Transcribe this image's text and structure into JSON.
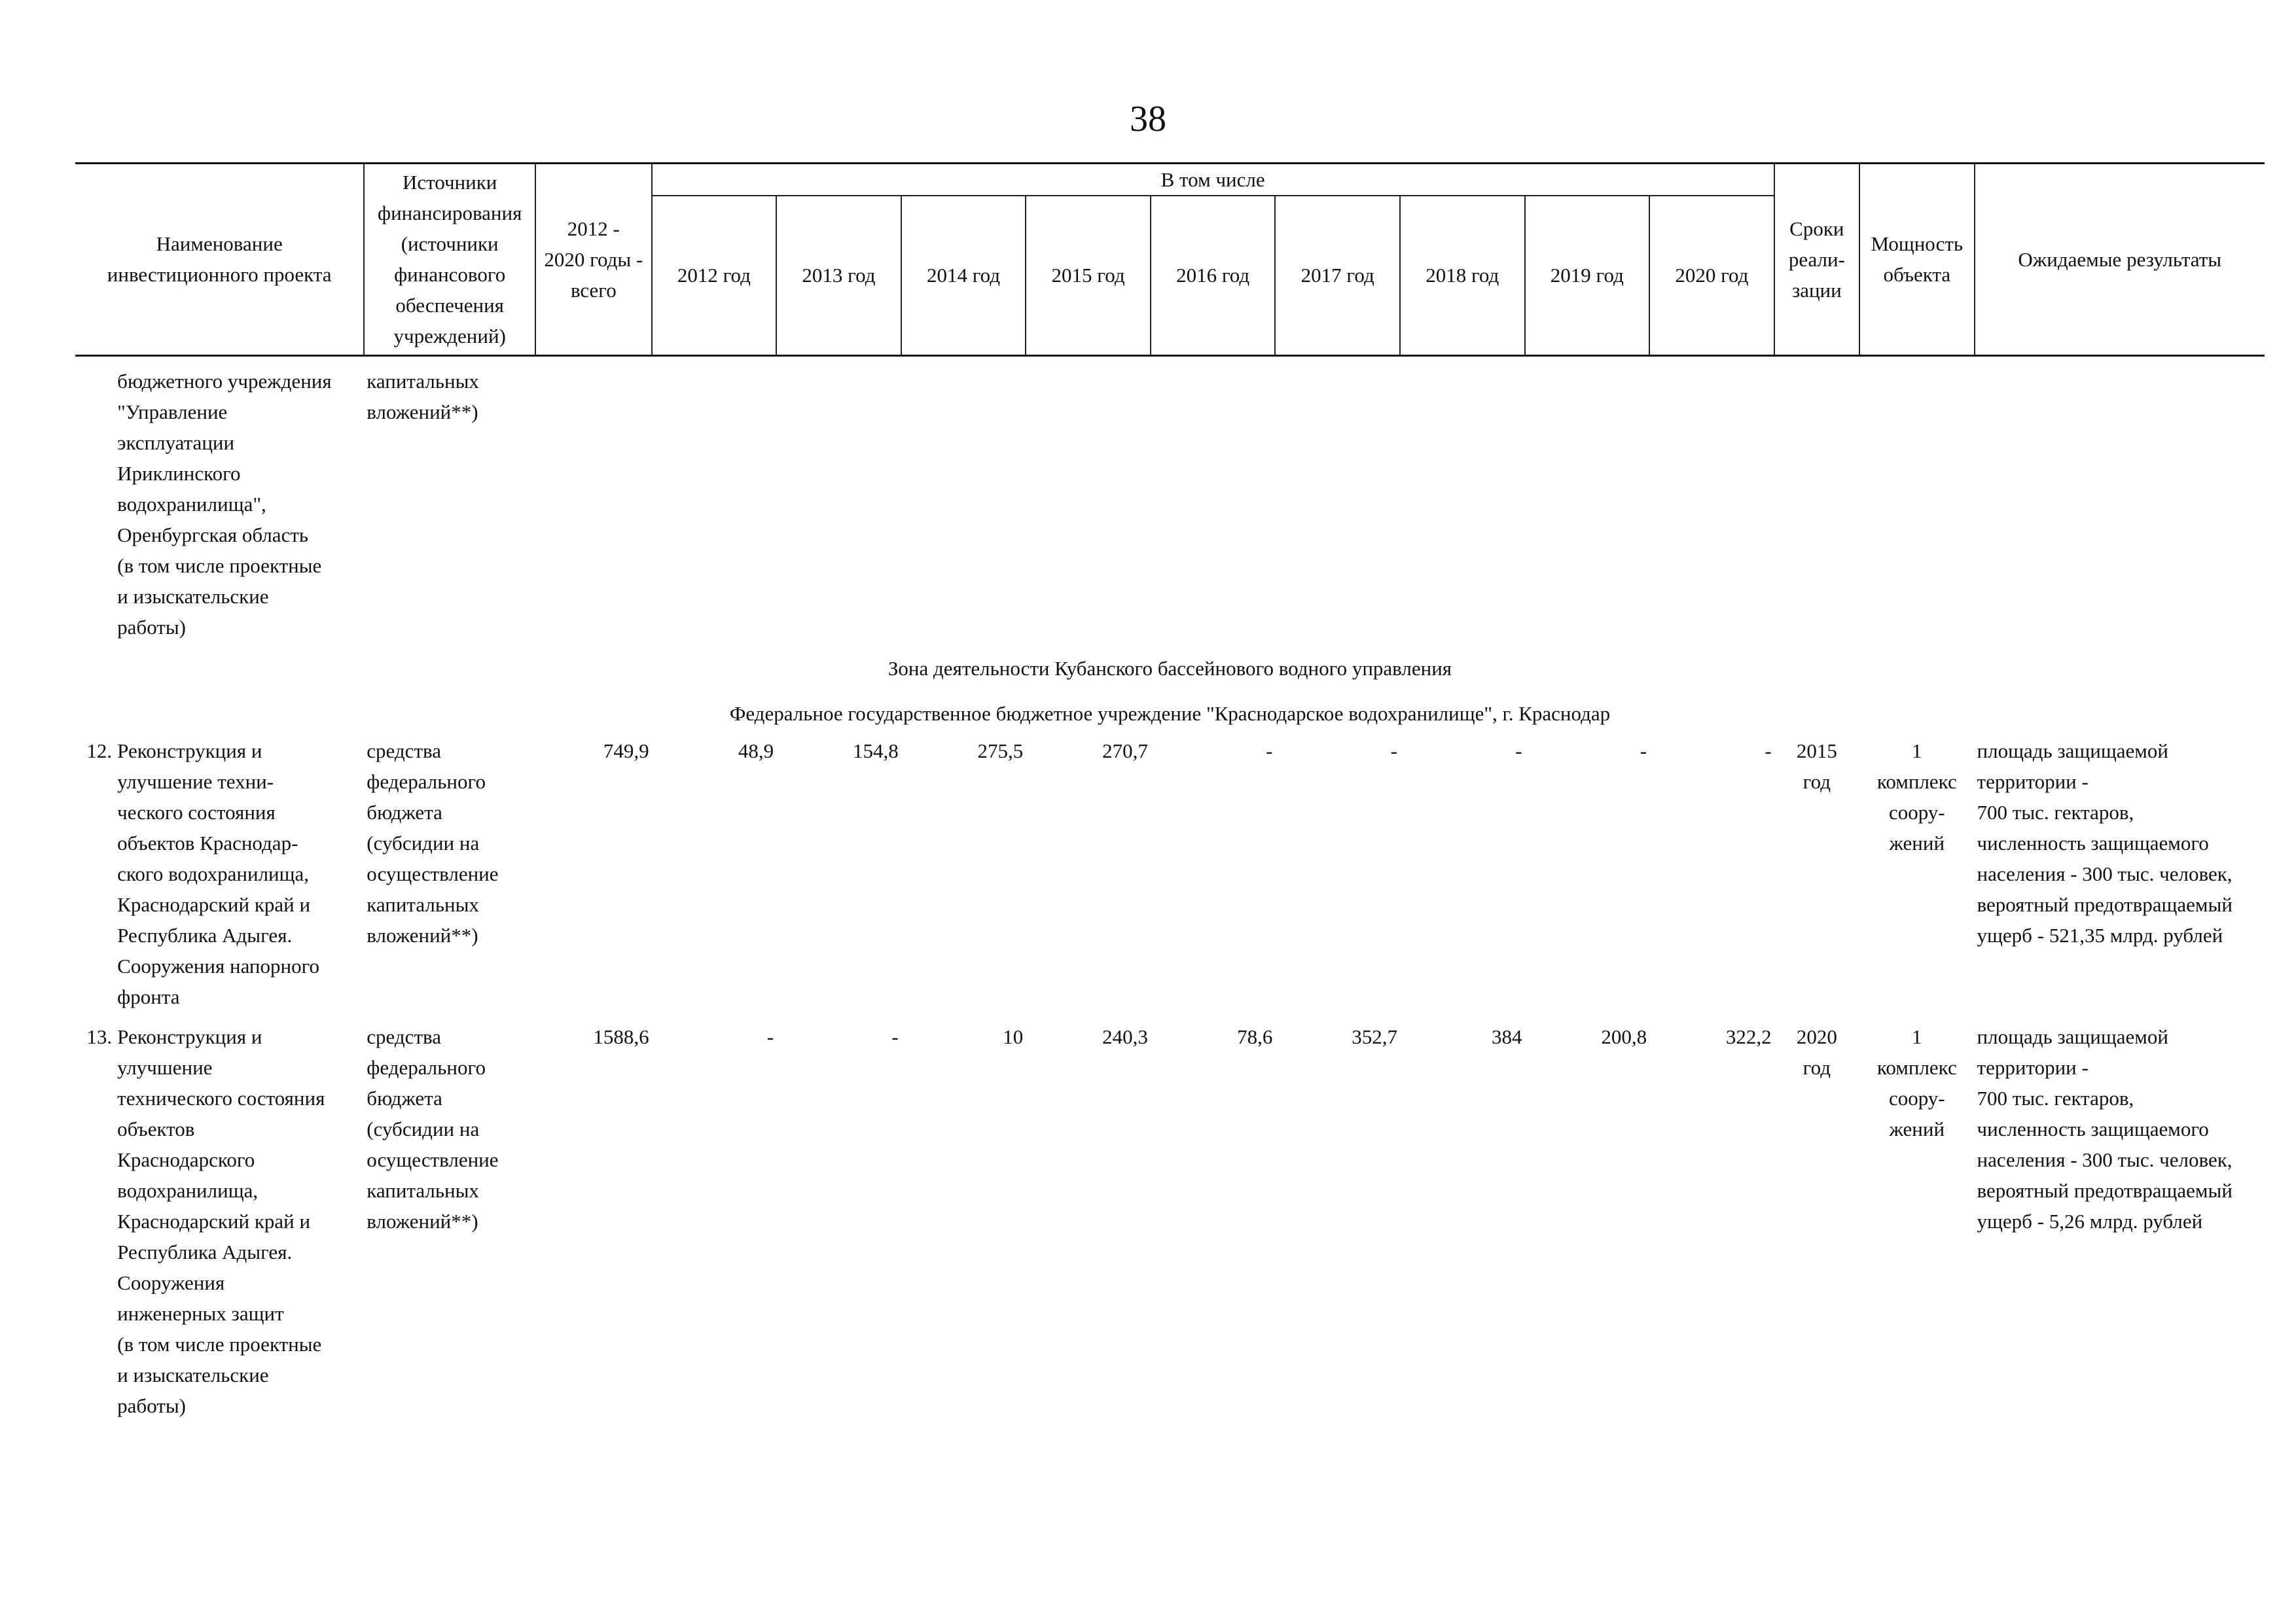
{
  "page_number": "38",
  "table": {
    "headers": {
      "name": "Наименование\nинвестиционного проекта",
      "source": "Источники\nфинансирования\n(источники\nфинансового\nобеспечения\nучреждений)",
      "total": "2012 -\n2020 годы -\nвсего",
      "including": "В том числе",
      "years": [
        "2012 год",
        "2013 год",
        "2014 год",
        "2015 год",
        "2016 год",
        "2017 год",
        "2018 год",
        "2019 год",
        "2020 год"
      ],
      "term": "Сроки\nреали-\nзации",
      "capacity": "Мощность\nобъекта",
      "results": "Ожидаемые результаты"
    },
    "continuation": {
      "name": "бюджетного учреждения\n\"Управление\nэксплуатации\nИриклинского\nводохранилища\",\nОренбургская область\n(в том числе проектные\nи изыскательские\nработы)",
      "source": "капитальных\nвложений**)"
    },
    "section_title": "Зона деятельности Кубанского бассейнового водного управления",
    "institution_title": "Федеральное государственное бюджетное учреждение \"Краснодарское водохранилище\", г. Краснодар",
    "rows": [
      {
        "index": "12.",
        "name": "Реконструкция и\nулучшение техни-\nческого состояния\nобъектов Краснодар-\nского водохранилища,\nКраснодарский край и\nРеспублика Адыгея.\nСооружения напорного\nфронта",
        "source": "средства\nфедерального\nбюджета\n(субсидии на\nосуществление\nкапитальных\nвложений**)",
        "total": "749,9",
        "years": [
          "48,9",
          "154,8",
          "275,5",
          "270,7",
          "-",
          "-",
          "-",
          "-",
          "-"
        ],
        "term": "2015\nгод",
        "capacity": "1\nкомплекс\nсоору-\nжений",
        "results": "площадь защищаемой\nтерритории -\n700 тыс. гектаров,\nчисленность защищаемого\nнаселения - 300 тыс. человек,\nвероятный предотвращаемый\nущерб - 521,35 млрд. рублей"
      },
      {
        "index": "13.",
        "name": "Реконструкция и\nулучшение\nтехнического состояния\nобъектов\nКраснодарского\nводохранилища,\nКраснодарский край и\nРеспублика Адыгея.\nСооружения\nинженерных защит\n(в том числе проектные\nи изыскательские\nработы)",
        "source": "средства\nфедерального\nбюджета\n(субсидии на\nосуществление\nкапитальных\nвложений**)",
        "total": "1588,6",
        "years": [
          "-",
          "-",
          "10",
          "240,3",
          "78,6",
          "352,7",
          "384",
          "200,8",
          "322,2"
        ],
        "term": "2020\nгод",
        "capacity": "1\nкомплекс\nсоору-\nжений",
        "results": "площадь защищаемой\nтерритории -\n700 тыс. гектаров,\nчисленность защищаемого\nнаселения - 300 тыс. человек,\nвероятный предотвращаемый\nущерб - 5,26 млрд. рублей"
      }
    ]
  }
}
